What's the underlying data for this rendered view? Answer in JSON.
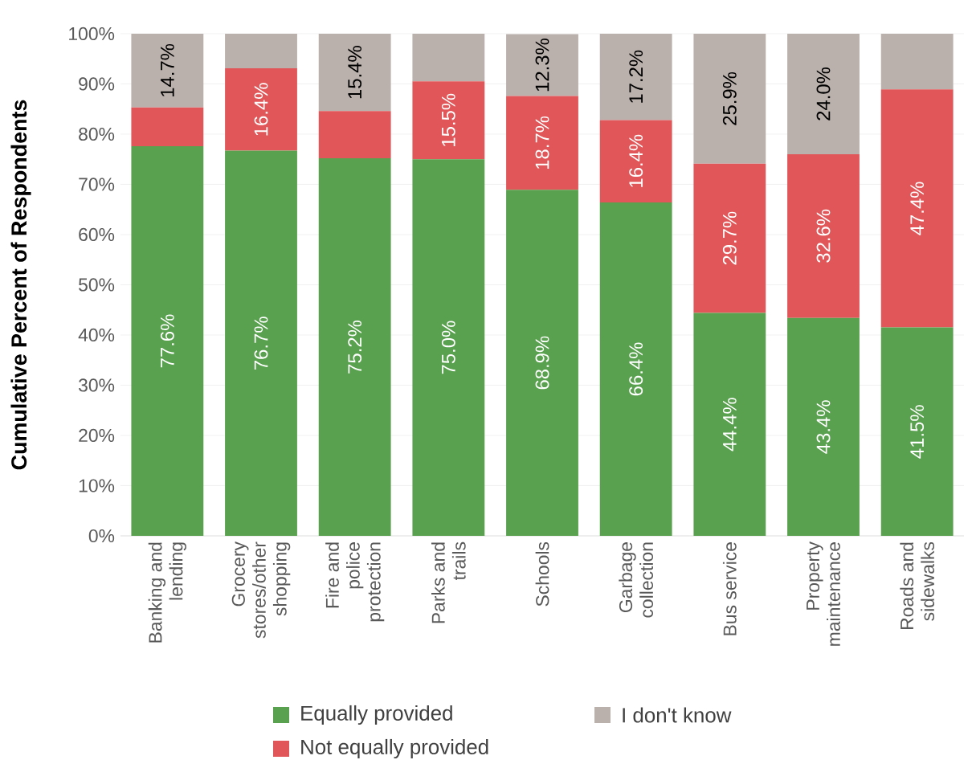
{
  "chart_data": {
    "type": "bar",
    "stacked": true,
    "ylabel": "Cumulative Percent of Respondents",
    "categories": [
      "Banking and lending",
      "Grocery stores/other shopping",
      "Fire and police protection",
      "Parks and trails",
      "Schools",
      "Garbage collection",
      "Bus service",
      "Property maintenance",
      "Roads and sidewalks"
    ],
    "series": [
      {
        "name": "Equally provided",
        "color": "#59a14f",
        "values": [
          77.6,
          76.7,
          75.2,
          75.0,
          68.9,
          66.4,
          44.4,
          43.4,
          41.5
        ],
        "value_labels": [
          "77.6%",
          "76.7%",
          "75.2%",
          "75.0%",
          "68.9%",
          "66.4%",
          "44.4%",
          "43.4%",
          "41.5%"
        ]
      },
      {
        "name": "Not equally provided",
        "color": "#e15759",
        "values": [
          7.7,
          16.4,
          9.4,
          15.5,
          18.7,
          16.4,
          29.7,
          32.6,
          47.4
        ],
        "value_labels": [
          null,
          "16.4%",
          null,
          "15.5%",
          "18.7%",
          "16.4%",
          "29.7%",
          "32.6%",
          "47.4%"
        ]
      },
      {
        "name": "I don't know",
        "color": "#bab0ac",
        "values": [
          14.7,
          6.9,
          15.4,
          9.5,
          12.3,
          17.2,
          25.9,
          24.0,
          11.1
        ],
        "value_labels": [
          "14.7%",
          null,
          "15.4%",
          null,
          "12.3%",
          "17.2%",
          "25.9%",
          "24.0%",
          null
        ]
      }
    ],
    "ylim": [
      0,
      100
    ],
    "yticks": [
      {
        "value": 0,
        "label": "0%"
      },
      {
        "value": 10,
        "label": "10%"
      },
      {
        "value": 20,
        "label": "20%"
      },
      {
        "value": 30,
        "label": "30%"
      },
      {
        "value": 40,
        "label": "40%"
      },
      {
        "value": 50,
        "label": "50%"
      },
      {
        "value": 60,
        "label": "60%"
      },
      {
        "value": 70,
        "label": "70%"
      },
      {
        "value": 80,
        "label": "80%"
      },
      {
        "value": 90,
        "label": "90%"
      },
      {
        "value": 100,
        "label": "100%"
      }
    ],
    "grid": "y",
    "legend": "bottom"
  }
}
